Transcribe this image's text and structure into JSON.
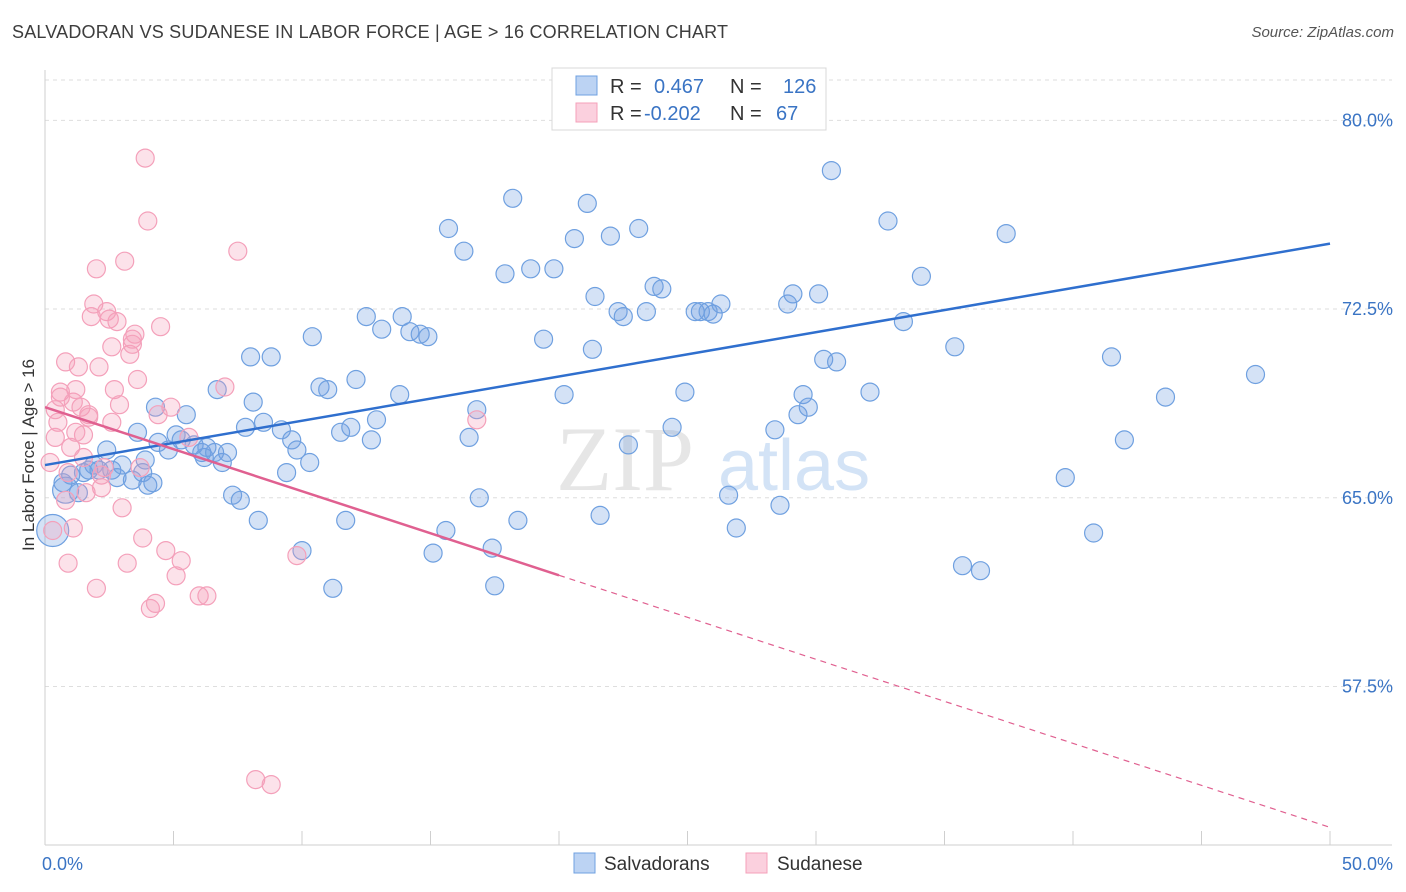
{
  "title": "SALVADORAN VS SUDANESE IN LABOR FORCE | AGE > 16 CORRELATION CHART",
  "source": "Source: ZipAtlas.com",
  "watermark": {
    "zip": "ZIP",
    "atlas": "atlas"
  },
  "chart_data": {
    "type": "scatter",
    "ylabel": "In Labor Force | Age > 16",
    "xlim": [
      0,
      50
    ],
    "ylim": [
      51.2,
      82
    ],
    "x_tick_labels": [
      "0.0%",
      "50.0%"
    ],
    "y_ticks": [
      57.5,
      65.0,
      72.5,
      80.0
    ],
    "y_tick_labels": [
      "57.5%",
      "65.0%",
      "72.5%",
      "80.0%"
    ],
    "legend": [
      {
        "R_label": "R =",
        "R": "0.467",
        "N_label": "N =",
        "N": "126"
      },
      {
        "R_label": "R =",
        "R": "-0.202",
        "N_label": "N =",
        "N": "67"
      }
    ],
    "series": [
      {
        "name": "Salvadorans",
        "color": "#6fa0e0",
        "line_color": "#2f6fce",
        "trend": {
          "x0": 0,
          "y0": 66.3,
          "x1": 50,
          "y1": 75.1,
          "solid_to": 50
        },
        "points": [
          [
            0.3,
            63.7
          ],
          [
            0.7,
            65.6
          ],
          [
            0.8,
            65.3
          ],
          [
            1.0,
            65.9
          ],
          [
            1.3,
            65.2
          ],
          [
            1.5,
            66.0
          ],
          [
            1.7,
            66.1
          ],
          [
            1.9,
            66.3
          ],
          [
            2.1,
            66.1
          ],
          [
            2.4,
            66.9
          ],
          [
            2.6,
            66.1
          ],
          [
            2.8,
            65.8
          ],
          [
            3.0,
            66.3
          ],
          [
            3.4,
            65.7
          ],
          [
            3.6,
            67.6
          ],
          [
            3.8,
            66.0
          ],
          [
            3.9,
            66.5
          ],
          [
            4.0,
            65.5
          ],
          [
            4.2,
            65.6
          ],
          [
            4.3,
            68.6
          ],
          [
            4.4,
            67.2
          ],
          [
            4.8,
            66.9
          ],
          [
            5.1,
            67.5
          ],
          [
            5.3,
            67.3
          ],
          [
            5.5,
            68.3
          ],
          [
            5.8,
            67.1
          ],
          [
            6.1,
            66.8
          ],
          [
            6.2,
            66.6
          ],
          [
            6.3,
            67.0
          ],
          [
            6.6,
            66.8
          ],
          [
            6.7,
            69.3
          ],
          [
            6.9,
            66.4
          ],
          [
            7.1,
            66.8
          ],
          [
            7.3,
            65.1
          ],
          [
            7.6,
            64.9
          ],
          [
            7.8,
            67.8
          ],
          [
            8.0,
            70.6
          ],
          [
            8.1,
            68.8
          ],
          [
            8.3,
            64.1
          ],
          [
            8.5,
            68.0
          ],
          [
            8.8,
            70.6
          ],
          [
            9.2,
            67.7
          ],
          [
            9.4,
            66.0
          ],
          [
            9.6,
            67.3
          ],
          [
            9.8,
            66.9
          ],
          [
            10.0,
            62.9
          ],
          [
            10.3,
            66.4
          ],
          [
            10.4,
            71.4
          ],
          [
            10.7,
            69.4
          ],
          [
            11.0,
            69.3
          ],
          [
            11.2,
            61.4
          ],
          [
            11.5,
            67.6
          ],
          [
            11.7,
            64.1
          ],
          [
            11.9,
            67.8
          ],
          [
            12.1,
            69.7
          ],
          [
            12.5,
            72.2
          ],
          [
            12.7,
            67.3
          ],
          [
            12.9,
            68.1
          ],
          [
            13.1,
            71.7
          ],
          [
            13.8,
            69.1
          ],
          [
            13.9,
            72.2
          ],
          [
            14.2,
            71.6
          ],
          [
            14.6,
            71.5
          ],
          [
            14.9,
            71.4
          ],
          [
            15.1,
            62.8
          ],
          [
            15.6,
            63.7
          ],
          [
            15.7,
            75.7
          ],
          [
            16.3,
            74.8
          ],
          [
            16.5,
            67.4
          ],
          [
            16.8,
            68.5
          ],
          [
            16.9,
            65.0
          ],
          [
            17.4,
            63.0
          ],
          [
            17.5,
            61.5
          ],
          [
            17.9,
            73.9
          ],
          [
            18.2,
            76.9
          ],
          [
            18.4,
            64.1
          ],
          [
            18.9,
            74.1
          ],
          [
            19.4,
            71.3
          ],
          [
            19.8,
            74.1
          ],
          [
            20.2,
            69.1
          ],
          [
            20.6,
            75.3
          ],
          [
            21.1,
            76.7
          ],
          [
            21.3,
            70.9
          ],
          [
            21.4,
            73.0
          ],
          [
            21.6,
            64.3
          ],
          [
            22.0,
            75.4
          ],
          [
            22.3,
            72.4
          ],
          [
            22.5,
            72.2
          ],
          [
            22.7,
            67.1
          ],
          [
            23.1,
            75.7
          ],
          [
            23.4,
            72.4
          ],
          [
            23.7,
            73.4
          ],
          [
            24.0,
            73.3
          ],
          [
            24.4,
            67.8
          ],
          [
            24.9,
            69.2
          ],
          [
            25.3,
            72.4
          ],
          [
            25.5,
            72.4
          ],
          [
            25.8,
            72.4
          ],
          [
            26.0,
            72.3
          ],
          [
            26.3,
            72.7
          ],
          [
            26.6,
            65.1
          ],
          [
            26.9,
            63.8
          ],
          [
            28.4,
            67.7
          ],
          [
            28.6,
            64.7
          ],
          [
            28.9,
            72.7
          ],
          [
            29.1,
            73.1
          ],
          [
            29.3,
            68.3
          ],
          [
            29.5,
            69.1
          ],
          [
            29.7,
            68.6
          ],
          [
            30.1,
            73.1
          ],
          [
            30.3,
            70.5
          ],
          [
            30.8,
            70.4
          ],
          [
            30.6,
            78.0
          ],
          [
            32.1,
            69.2
          ],
          [
            32.8,
            76.0
          ],
          [
            33.4,
            72.0
          ],
          [
            34.1,
            73.8
          ],
          [
            35.4,
            71.0
          ],
          [
            35.7,
            62.3
          ],
          [
            36.4,
            62.1
          ],
          [
            37.4,
            75.5
          ],
          [
            39.7,
            65.8
          ],
          [
            40.8,
            63.6
          ],
          [
            41.5,
            70.6
          ],
          [
            42.0,
            67.3
          ],
          [
            43.6,
            69.0
          ],
          [
            47.1,
            69.9
          ]
        ]
      },
      {
        "name": "Sudanese",
        "color": "#f4a0ba",
        "line_color": "#e06090",
        "trend": {
          "x0": 0,
          "y0": 68.6,
          "x1": 50,
          "y1": 51.9,
          "solid_to": 20
        },
        "points": [
          [
            0.2,
            66.4
          ],
          [
            0.3,
            63.7
          ],
          [
            0.4,
            67.4
          ],
          [
            0.5,
            68.0
          ],
          [
            0.6,
            69.2
          ],
          [
            0.8,
            70.4
          ],
          [
            0.9,
            66.0
          ],
          [
            1.0,
            67.0
          ],
          [
            1.1,
            68.8
          ],
          [
            1.2,
            69.3
          ],
          [
            1.3,
            70.2
          ],
          [
            1.4,
            68.6
          ],
          [
            1.5,
            67.5
          ],
          [
            1.6,
            65.2
          ],
          [
            1.7,
            68.3
          ],
          [
            1.8,
            72.2
          ],
          [
            1.9,
            72.7
          ],
          [
            2.0,
            74.1
          ],
          [
            2.1,
            70.2
          ],
          [
            2.2,
            65.9
          ],
          [
            2.3,
            66.2
          ],
          [
            2.4,
            72.4
          ],
          [
            2.5,
            72.1
          ],
          [
            2.6,
            71.0
          ],
          [
            2.7,
            69.3
          ],
          [
            2.8,
            72.0
          ],
          [
            2.9,
            68.7
          ],
          [
            3.0,
            64.6
          ],
          [
            3.1,
            74.4
          ],
          [
            3.2,
            62.4
          ],
          [
            3.3,
            70.7
          ],
          [
            3.4,
            71.3
          ],
          [
            3.5,
            71.5
          ],
          [
            3.6,
            69.7
          ],
          [
            3.7,
            66.2
          ],
          [
            3.8,
            63.4
          ],
          [
            3.9,
            78.5
          ],
          [
            4.0,
            76.0
          ],
          [
            4.1,
            60.6
          ],
          [
            4.3,
            60.8
          ],
          [
            4.5,
            71.8
          ],
          [
            4.7,
            62.9
          ],
          [
            4.9,
            68.6
          ],
          [
            5.1,
            61.9
          ],
          [
            5.3,
            62.5
          ],
          [
            5.6,
            67.4
          ],
          [
            6.0,
            61.1
          ],
          [
            6.3,
            61.1
          ],
          [
            7.0,
            69.4
          ],
          [
            7.5,
            74.8
          ],
          [
            8.2,
            53.8
          ],
          [
            8.8,
            53.6
          ],
          [
            9.8,
            62.7
          ],
          [
            16.8,
            68.1
          ],
          [
            1.1,
            63.8
          ],
          [
            0.9,
            62.4
          ],
          [
            2.0,
            61.4
          ],
          [
            1.5,
            66.6
          ],
          [
            0.6,
            69.0
          ],
          [
            1.2,
            67.6
          ],
          [
            2.6,
            68.0
          ],
          [
            0.4,
            68.5
          ],
          [
            3.4,
            71.1
          ],
          [
            1.7,
            68.2
          ],
          [
            2.2,
            65.4
          ],
          [
            0.8,
            64.9
          ],
          [
            4.4,
            68.3
          ]
        ]
      }
    ]
  }
}
